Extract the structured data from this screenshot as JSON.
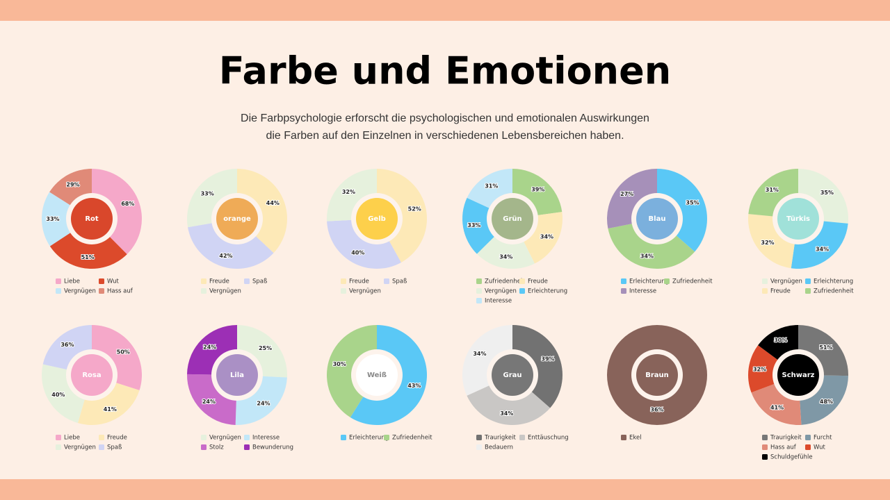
{
  "title": "Farbe und Emotionen",
  "subtitle": [
    "Die Farbpsychologie erforscht die psychologischen und emotionalen Auswirkungen",
    "die Farben auf den Einzelnen in verschiedenen Lebensbereichen haben."
  ],
  "chart_data": [
    {
      "type": "pie",
      "label": "Rot",
      "center_color": "#d9472b",
      "label_color": "#ffffff",
      "categories": [
        "Liebe",
        "Wut",
        "Vergnügen",
        "Hass auf"
      ],
      "values": [
        68,
        51,
        33,
        29
      ],
      "value_labels": [
        "68%",
        "51%",
        "33%",
        "29%"
      ],
      "colors": [
        "#f5a8c9",
        "#dc4a2b",
        "#c2e7f8",
        "#e08a78"
      ]
    },
    {
      "type": "pie",
      "label": "orange",
      "center_color": "#efab57",
      "label_color": "#ffffff",
      "categories": [
        "Freude",
        "Spaß",
        "Vergnügen"
      ],
      "values": [
        44,
        42,
        33
      ],
      "value_labels": [
        "44%",
        "42%",
        "33%"
      ],
      "colors": [
        "#fde9b7",
        "#d0d4f4",
        "#e6f1dd"
      ]
    },
    {
      "type": "pie",
      "label": "Gelb",
      "center_color": "#fdd04b",
      "label_color": "#ffffff",
      "categories": [
        "Freude",
        "Spaß",
        "Vergnügen"
      ],
      "values": [
        52,
        40,
        32
      ],
      "value_labels": [
        "52%",
        "40%",
        "32%"
      ],
      "colors": [
        "#fde9b7",
        "#d0d4f4",
        "#e6f1dd"
      ]
    },
    {
      "type": "pie",
      "label": "Grün",
      "center_color": "#a4b68b",
      "label_color": "#ffffff",
      "categories": [
        "Zufriedenheit",
        "Freude",
        "Vergnügen",
        "Erleichterung",
        "Interesse"
      ],
      "values": [
        39,
        34,
        34,
        33,
        31
      ],
      "value_labels": [
        "39%",
        "34%",
        "34%",
        "33%",
        "31%"
      ],
      "colors": [
        "#a9d48b",
        "#fde9b7",
        "#e6f1dd",
        "#5ac8f6",
        "#c2e7f8"
      ]
    },
    {
      "type": "pie",
      "label": "Blau",
      "center_color": "#7bb0dd",
      "label_color": "#ffffff",
      "categories": [
        "Erleichterung",
        "Zufriedenheit",
        "Interesse"
      ],
      "values": [
        35,
        34,
        27
      ],
      "value_labels": [
        "35%",
        "34%",
        "27%"
      ],
      "colors": [
        "#5ac8f6",
        "#a9d48b",
        "#a690b9"
      ]
    },
    {
      "type": "pie",
      "label": "Türkis",
      "center_color": "#a0e1d9",
      "label_color": "#ffffff",
      "categories": [
        "Vergnügen",
        "Erleichterung",
        "Freude",
        "Zufriedenheit"
      ],
      "values": [
        35,
        34,
        32,
        31
      ],
      "value_labels": [
        "35%",
        "34%",
        "32%",
        "31%"
      ],
      "colors": [
        "#e6f1dd",
        "#5ac8f6",
        "#fde9b7",
        "#a9d48b"
      ]
    },
    {
      "type": "pie",
      "label": "Rosa",
      "center_color": "#f5a8c9",
      "label_color": "#ffffff",
      "categories": [
        "Liebe",
        "Freude",
        "Vergnügen",
        "Spaß"
      ],
      "values": [
        50,
        41,
        40,
        36
      ],
      "value_labels": [
        "50%",
        "41%",
        "40%",
        "36%"
      ],
      "colors": [
        "#f5a8c9",
        "#fde9b7",
        "#e6f1dd",
        "#d0d4f4"
      ]
    },
    {
      "type": "pie",
      "label": "Lila",
      "center_color": "#aa90c5",
      "label_color": "#ffffff",
      "categories": [
        "Vergnügen",
        "Interesse",
        "Stolz",
        "Bewunderung"
      ],
      "values": [
        25,
        24,
        24,
        24
      ],
      "value_labels": [
        "25%",
        "24%",
        "24%",
        "24%"
      ],
      "colors": [
        "#e6f1dd",
        "#c2e7f8",
        "#c96bc9",
        "#9c2fb5"
      ]
    },
    {
      "type": "pie",
      "label": "Weiß",
      "center_color": "#ffffff",
      "label_color": "#888888",
      "categories": [
        "Erleichterung",
        "Zufriedenheit"
      ],
      "values": [
        43,
        30
      ],
      "value_labels": [
        "43%",
        "30%"
      ],
      "colors": [
        "#5ac8f6",
        "#a9d48b"
      ]
    },
    {
      "type": "pie",
      "label": "Grau",
      "center_color": "#777777",
      "label_color": "#ffffff",
      "categories": [
        "Traurigkeit",
        "Enttäuschung",
        "Bedauern"
      ],
      "values": [
        39,
        34,
        34
      ],
      "value_labels": [
        "39%",
        "34%",
        "34%"
      ],
      "colors": [
        "#727272",
        "#c9c7c5",
        "#efefef"
      ]
    },
    {
      "type": "pie",
      "label": "Braun",
      "center_color": "#88635a",
      "label_color": "#ffffff",
      "categories": [
        "Ekel"
      ],
      "values": [
        36
      ],
      "value_labels": [
        "36%"
      ],
      "colors": [
        "#88635a"
      ]
    },
    {
      "type": "pie",
      "label": "Schwarz",
      "center_color": "#000000",
      "label_color": "#ffffff",
      "categories": [
        "Traurigkeit",
        "Furcht",
        "Hass auf",
        "Wut",
        "Schuldgefühle"
      ],
      "values": [
        51,
        48,
        41,
        32,
        30
      ],
      "value_labels": [
        "51%",
        "48%",
        "41%",
        "32%",
        "30%"
      ],
      "colors": [
        "#777777",
        "#7f98a6",
        "#e08a78",
        "#dc4a2b",
        "#000000"
      ]
    }
  ]
}
